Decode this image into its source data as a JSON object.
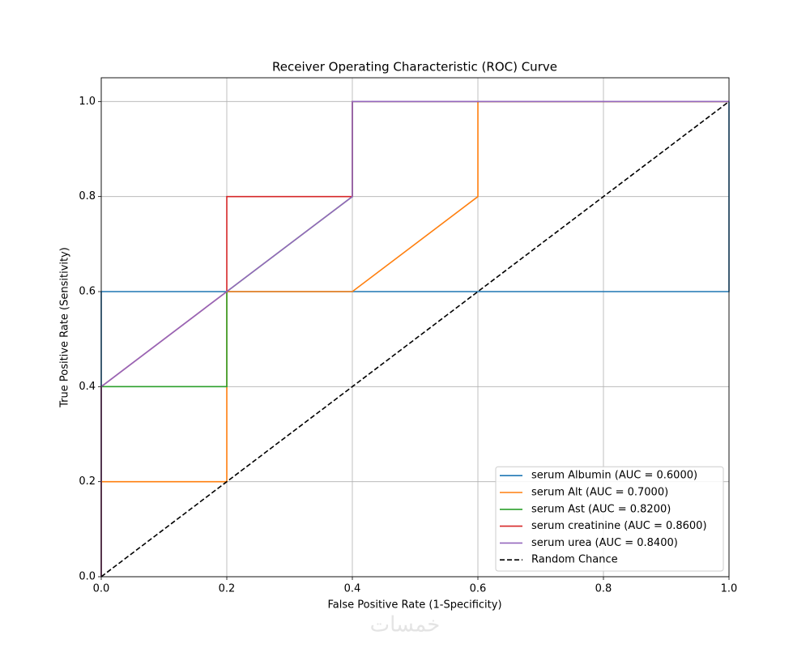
{
  "chart_data": {
    "type": "line",
    "title": "Receiver Operating Characteristic (ROC) Curve",
    "xlabel": "False Positive Rate (1-Specificity)",
    "ylabel": "True Positive Rate (Sensitivity)",
    "xlim": [
      0,
      1
    ],
    "ylim": [
      0,
      1.05
    ],
    "xticks": [
      {
        "value": 0,
        "label": "0.0"
      },
      0.2,
      0.4,
      0.6,
      0.8,
      {
        "value": 1,
        "label": "1.0"
      }
    ],
    "yticks": [
      {
        "value": 0,
        "label": "0.0"
      },
      0.2,
      0.4,
      0.6,
      0.8,
      {
        "value": 1,
        "label": "1.0"
      }
    ],
    "grid": true,
    "legend": "lower right",
    "series": [
      {
        "name": "serum Albumin (AUC = 0.6000)",
        "color": "#1f77b4",
        "x": [
          0,
          0,
          1,
          1
        ],
        "values": [
          0,
          0.6,
          0.6,
          1
        ]
      },
      {
        "name": "serum Alt (AUC = 0.7000)",
        "color": "#ff7f0e",
        "x": [
          0,
          0,
          0.2,
          0.2,
          0.4,
          0.6,
          0.6,
          1
        ],
        "values": [
          0,
          0.2,
          0.2,
          0.6,
          0.6,
          0.8,
          1,
          1
        ]
      },
      {
        "name": "serum Ast (AUC = 0.8200)",
        "color": "#2ca02c",
        "x": [
          0,
          0,
          0.2,
          0.2,
          0.4,
          0.4,
          1
        ],
        "values": [
          0,
          0.4,
          0.4,
          0.6,
          0.8,
          1,
          1
        ]
      },
      {
        "name": "serum creatinine (AUC = 0.8600)",
        "color": "#d62728",
        "x": [
          0,
          0,
          0.2,
          0.2,
          0.4,
          0.4,
          1
        ],
        "values": [
          0,
          0.4,
          0.6,
          0.8,
          0.8,
          1,
          1
        ]
      },
      {
        "name": "serum urea (AUC = 0.8400)",
        "color": "#9467bd",
        "x": [
          0,
          0,
          0.4,
          0.4,
          1
        ],
        "values": [
          0,
          0.4,
          0.8,
          1,
          1
        ]
      },
      {
        "name": "Random Chance",
        "color": "#000000",
        "dashed": true,
        "x": [
          0,
          1
        ],
        "values": [
          0,
          1
        ]
      }
    ]
  },
  "watermark": "خمسات"
}
